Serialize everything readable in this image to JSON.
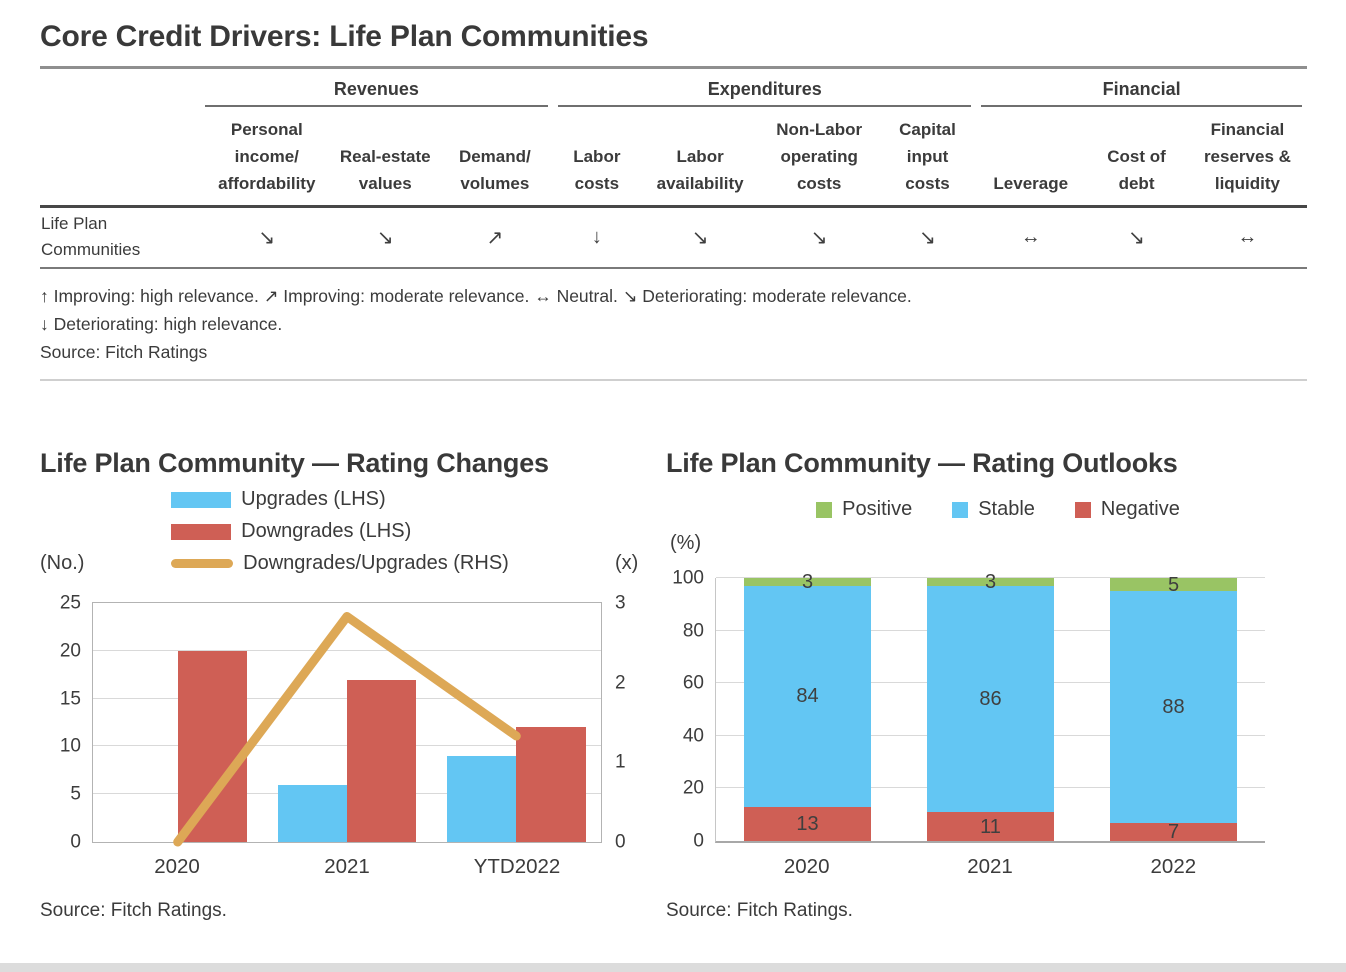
{
  "title": "Core Credit Drivers: Life Plan Communities",
  "table": {
    "groups": [
      {
        "label": "Revenues",
        "span": 3
      },
      {
        "label": "Expenditures",
        "span": 4
      },
      {
        "label": "Financial",
        "span": 3
      }
    ],
    "columns": [
      "Personal income/ affordability",
      "Real-estate values",
      "Demand/ volumes",
      "Labor costs",
      "Labor availability",
      "Non-Labor operating costs",
      "Capital input costs",
      "Leverage",
      "Cost of debt",
      "Financial reserves & liquidity"
    ],
    "rows": [
      {
        "label": "Life Plan Communities",
        "arrows": [
          "↘",
          "↘",
          "↗",
          "↓",
          "↘",
          "↘",
          "↘",
          "↔",
          "↘",
          "↔"
        ]
      }
    ],
    "footnote_line1": "↑ Improving: high relevance. ↗ Improving: moderate relevance. ↔ Neutral. ↘ Deteriorating: moderate relevance.",
    "footnote_line2": "↓ Deteriorating: high relevance.",
    "source": "Source: Fitch Ratings"
  },
  "chart_data": [
    {
      "type": "bar",
      "title": "Life Plan Community — Rating Changes",
      "categories": [
        "2020",
        "2021",
        "YTD2022"
      ],
      "series": [
        {
          "name": "Upgrades (LHS)",
          "type": "bar",
          "axis": "left",
          "color": "#63C6F3",
          "values": [
            0,
            6,
            9
          ]
        },
        {
          "name": "Downgrades (LHS)",
          "type": "bar",
          "axis": "left",
          "color": "#CF5F55",
          "values": [
            20,
            17,
            12
          ]
        },
        {
          "name": "Downgrades/Upgrades (RHS)",
          "type": "line",
          "axis": "right",
          "color": "#DDA856",
          "values": [
            0,
            2.83,
            1.33
          ]
        }
      ],
      "left_axis": {
        "label": "(No.)",
        "ticks": [
          0,
          5,
          10,
          15,
          20,
          25
        ],
        "max": 25
      },
      "right_axis": {
        "label": "(x)",
        "ticks": [
          0,
          1,
          2,
          3
        ],
        "max": 3
      },
      "grid": true,
      "legend_position": "top",
      "source": "Source: Fitch Ratings."
    },
    {
      "type": "stacked-bar",
      "title": "Life Plan Community — Rating Outlooks",
      "categories": [
        "2020",
        "2021",
        "2022"
      ],
      "series": [
        {
          "name": "Negative",
          "color": "#CF5F55",
          "values": [
            13,
            11,
            7
          ]
        },
        {
          "name": "Stable",
          "color": "#63C6F3",
          "values": [
            84,
            86,
            88
          ]
        },
        {
          "name": "Positive",
          "color": "#99C464",
          "values": [
            3,
            3,
            5
          ]
        }
      ],
      "legend_order": [
        "Positive",
        "Stable",
        "Negative"
      ],
      "left_axis": {
        "label": "(%)",
        "ticks": [
          0,
          20,
          40,
          60,
          80,
          100
        ],
        "max": 100
      },
      "grid": true,
      "legend_position": "top",
      "source": "Source: Fitch Ratings."
    }
  ]
}
